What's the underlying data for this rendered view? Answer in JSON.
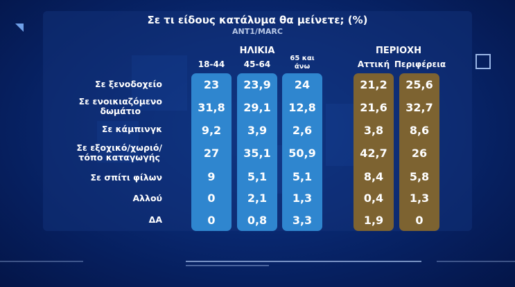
{
  "title": "Σε τι είδους κατάλυμα θα μείνετε; (%)",
  "source": "ANT1/MARC",
  "groups": {
    "age": "ΗΛΙΚΙΑ",
    "region": "ΠΕΡΙΟΧΗ"
  },
  "columns": {
    "c1": "18-44",
    "c2": "45-64",
    "c3_line1": "65 και",
    "c3_line2": "άνω",
    "c4": "Αττική",
    "c5": "Περιφέρεια"
  },
  "rows": [
    {
      "label": "Σε ξενοδοχείο",
      "label2": "",
      "values": [
        "23",
        "23,9",
        "24",
        "21,2",
        "25,6"
      ]
    },
    {
      "label": "Σε ενοικιαζόμενο",
      "label2": "δωμάτιο",
      "values": [
        "31,8",
        "29,1",
        "12,8",
        "21,6",
        "32,7"
      ]
    },
    {
      "label": "Σε κάμπινγκ",
      "label2": "",
      "values": [
        "9,2",
        "3,9",
        "2,6",
        "3,8",
        "8,6"
      ]
    },
    {
      "label": "Σε εξοχικό/χωριό/",
      "label2": "τόπο καταγωγής",
      "values": [
        "27",
        "35,1",
        "50,9",
        "42,7",
        "26"
      ]
    },
    {
      "label": "Σε σπίτι φίλων",
      "label2": "",
      "values": [
        "9",
        "5,1",
        "5,1",
        "8,4",
        "5,8"
      ]
    },
    {
      "label": "Αλλού",
      "label2": "",
      "values": [
        "0",
        "2,1",
        "1,3",
        "0,4",
        "1,3"
      ]
    },
    {
      "label": "ΔΑ",
      "label2": "",
      "values": [
        "0",
        "0,8",
        "3,3",
        "1,9",
        "0"
      ]
    }
  ],
  "colors": {
    "age_column": "#2f86cf",
    "region_column": "#7d6331",
    "background": "#0a2c78"
  }
}
